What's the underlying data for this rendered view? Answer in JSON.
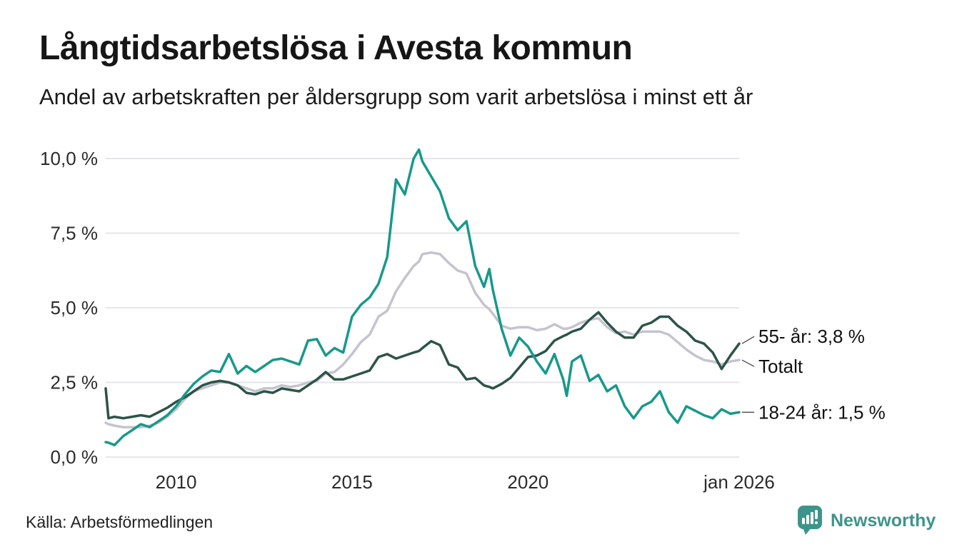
{
  "header": {
    "title": "Långtidsarbetslösa i Avesta kommun",
    "subtitle": "Andel av arbetskraften per åldersgrupp som varit arbetslösa i minst ett år"
  },
  "footer": {
    "source": "Källa: Arbetsförmedlingen",
    "brand_name": "Newsworthy"
  },
  "colors": {
    "youth_line": "#17998a",
    "total_line": "#c5c3cf",
    "senior_line": "#2d5348",
    "gridline": "#e6e5ea",
    "axis_text": "#2b2b2b",
    "label_text": "#111111",
    "connector": "#4a4a4a",
    "brand_teal": "#3d948b",
    "background": "#ffffff"
  },
  "chart_data": {
    "type": "line",
    "title": "Långtidsarbetslösa i Avesta kommun",
    "subtitle": "Andel av arbetskraften per åldersgrupp som varit arbetslösa i minst ett år",
    "unit": "%",
    "grid": true,
    "legend_position": "right-end-labels",
    "x_range": [
      2008,
      2026
    ],
    "y_range": [
      0,
      10
    ],
    "x_ticks": [
      {
        "label": "2010",
        "year": 2010
      },
      {
        "label": "2015",
        "year": 2015
      },
      {
        "label": "2020",
        "year": 2020
      },
      {
        "label": "jan 2026",
        "year": 2026
      }
    ],
    "y_ticks": [
      {
        "label": "0,0 %",
        "value": 0
      },
      {
        "label": "2,5 %",
        "value": 2.5
      },
      {
        "label": "5,0 %",
        "value": 5
      },
      {
        "label": "7,5 %",
        "value": 7.5
      },
      {
        "label": "10,0 %",
        "value": 10
      }
    ],
    "x": [
      2008.0,
      2008.08,
      2008.25,
      2008.5,
      2008.75,
      2009.0,
      2009.25,
      2009.5,
      2009.75,
      2010.0,
      2010.25,
      2010.5,
      2010.75,
      2011.0,
      2011.25,
      2011.5,
      2011.75,
      2012.0,
      2012.25,
      2012.5,
      2012.75,
      2013.0,
      2013.25,
      2013.5,
      2013.75,
      2014.0,
      2014.25,
      2014.5,
      2014.75,
      2015.0,
      2015.25,
      2015.5,
      2015.75,
      2016.0,
      2016.25,
      2016.5,
      2016.75,
      2016.9,
      2017.0,
      2017.25,
      2017.5,
      2017.75,
      2018.0,
      2018.25,
      2018.5,
      2018.75,
      2018.9,
      2019.0,
      2019.25,
      2019.5,
      2019.75,
      2020.0,
      2020.25,
      2020.5,
      2020.75,
      2021.0,
      2021.1,
      2021.25,
      2021.5,
      2021.75,
      2022.0,
      2022.25,
      2022.5,
      2022.75,
      2023.0,
      2023.25,
      2023.5,
      2023.75,
      2024.0,
      2024.25,
      2024.5,
      2024.75,
      2025.0,
      2025.25,
      2025.5,
      2025.75,
      2026.0
    ],
    "series": [
      {
        "name": "Totalt",
        "color": "#c5c3cf",
        "end_label": "Totalt",
        "end_value_label": null,
        "values": [
          1.15,
          1.1,
          1.05,
          1.0,
          1.0,
          1.0,
          1.05,
          1.15,
          1.35,
          1.6,
          1.95,
          2.2,
          2.3,
          2.4,
          2.5,
          2.5,
          2.4,
          2.3,
          2.2,
          2.3,
          2.3,
          2.4,
          2.35,
          2.4,
          2.5,
          2.55,
          2.8,
          2.85,
          3.1,
          3.45,
          3.85,
          4.1,
          4.7,
          4.9,
          5.55,
          6.0,
          6.4,
          6.55,
          6.8,
          6.85,
          6.8,
          6.5,
          6.25,
          6.15,
          5.5,
          5.1,
          4.95,
          4.8,
          4.4,
          4.3,
          4.35,
          4.35,
          4.25,
          4.3,
          4.45,
          4.3,
          4.3,
          4.35,
          4.5,
          4.6,
          4.65,
          4.35,
          4.15,
          4.2,
          4.1,
          4.2,
          4.2,
          4.2,
          4.1,
          3.85,
          3.6,
          3.4,
          3.25,
          3.2,
          3.1,
          3.2,
          3.25
        ]
      },
      {
        "name": "55- år",
        "color": "#2d5348",
        "end_label": "55- år: 3,8 %",
        "end_value_label": "3,8 %",
        "values": [
          2.3,
          1.3,
          1.35,
          1.3,
          1.35,
          1.4,
          1.35,
          1.5,
          1.65,
          1.85,
          2.0,
          2.2,
          2.4,
          2.5,
          2.55,
          2.5,
          2.4,
          2.15,
          2.1,
          2.2,
          2.15,
          2.3,
          2.25,
          2.2,
          2.4,
          2.6,
          2.85,
          2.6,
          2.6,
          2.7,
          2.8,
          2.9,
          3.35,
          3.45,
          3.3,
          3.4,
          3.5,
          3.55,
          3.65,
          3.88,
          3.75,
          3.1,
          3.0,
          2.6,
          2.65,
          2.4,
          2.35,
          2.3,
          2.45,
          2.65,
          3.0,
          3.35,
          3.4,
          3.55,
          3.9,
          4.05,
          4.1,
          4.2,
          4.3,
          4.6,
          4.85,
          4.5,
          4.2,
          4.0,
          4.0,
          4.4,
          4.5,
          4.7,
          4.7,
          4.4,
          4.2,
          3.9,
          3.8,
          3.5,
          2.95,
          3.4,
          3.8
        ]
      },
      {
        "name": "18-24 år",
        "color": "#17998a",
        "end_label": "18-24 år: 1,5 %",
        "end_value_label": "1,5 %",
        "values": [
          0.5,
          0.48,
          0.4,
          0.7,
          0.9,
          1.1,
          1.0,
          1.2,
          1.4,
          1.7,
          2.1,
          2.45,
          2.7,
          2.9,
          2.85,
          3.45,
          2.8,
          3.05,
          2.85,
          3.05,
          3.25,
          3.3,
          3.2,
          3.1,
          3.9,
          3.95,
          3.4,
          3.65,
          3.5,
          4.7,
          5.1,
          5.35,
          5.8,
          6.7,
          9.3,
          8.8,
          10.0,
          10.3,
          9.9,
          9.4,
          8.9,
          8.0,
          7.6,
          7.9,
          6.4,
          5.7,
          6.3,
          5.6,
          4.3,
          3.4,
          4.0,
          3.7,
          3.2,
          2.8,
          3.45,
          2.6,
          2.05,
          3.2,
          3.4,
          2.55,
          2.75,
          2.2,
          2.4,
          1.7,
          1.3,
          1.7,
          1.85,
          2.2,
          1.5,
          1.15,
          1.7,
          1.55,
          1.4,
          1.3,
          1.6,
          1.45,
          1.5
        ]
      }
    ]
  }
}
